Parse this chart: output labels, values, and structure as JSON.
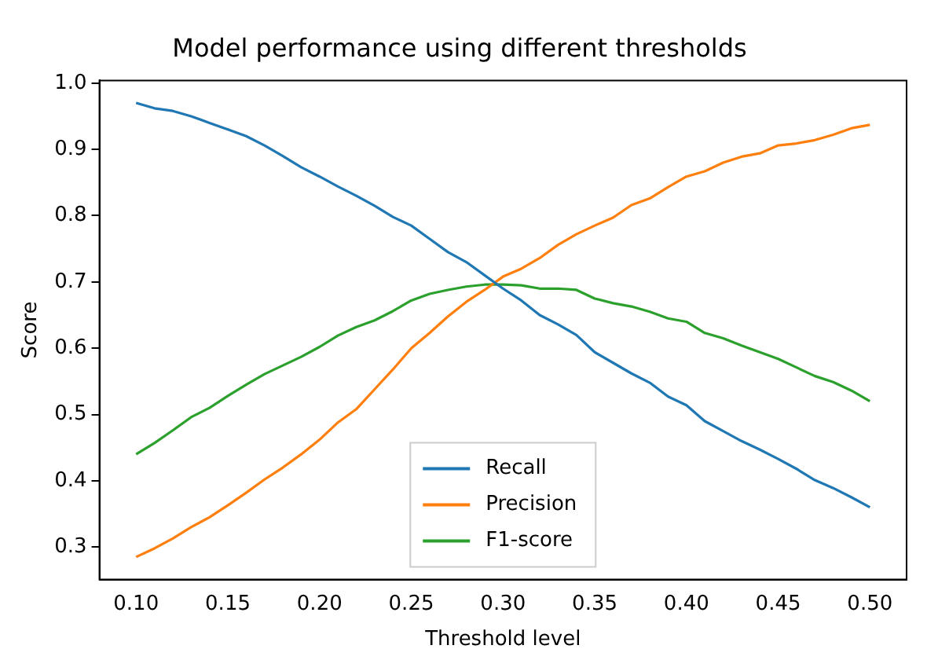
{
  "chart_data": {
    "type": "line",
    "title": "Model performance using different thresholds",
    "xlabel": "Threshold level",
    "ylabel": "Score",
    "x": [
      0.1,
      0.11,
      0.12,
      0.13,
      0.14,
      0.15,
      0.16,
      0.17,
      0.18,
      0.19,
      0.2,
      0.21,
      0.22,
      0.23,
      0.24,
      0.25,
      0.26,
      0.27,
      0.28,
      0.29,
      0.3,
      0.31,
      0.32,
      0.33,
      0.34,
      0.35,
      0.36,
      0.37,
      0.38,
      0.39,
      0.4,
      0.41,
      0.42,
      0.43,
      0.44,
      0.45,
      0.46,
      0.47,
      0.48,
      0.49,
      0.5
    ],
    "series": [
      {
        "name": "Recall",
        "color": "#1f77b4",
        "values": [
          0.97,
          0.962,
          0.958,
          0.95,
          0.94,
          0.93,
          0.92,
          0.906,
          0.89,
          0.873,
          0.859,
          0.844,
          0.83,
          0.815,
          0.798,
          0.785,
          0.765,
          0.745,
          0.73,
          0.71,
          0.69,
          0.672,
          0.65,
          0.636,
          0.62,
          0.594,
          0.578,
          0.562,
          0.548,
          0.527,
          0.514,
          0.49,
          0.475,
          0.46,
          0.447,
          0.433,
          0.418,
          0.401,
          0.389,
          0.375,
          0.36
        ]
      },
      {
        "name": "Precision",
        "color": "#ff7f0e",
        "values": [
          0.285,
          0.298,
          0.313,
          0.33,
          0.345,
          0.363,
          0.382,
          0.402,
          0.42,
          0.44,
          0.462,
          0.488,
          0.508,
          0.538,
          0.568,
          0.6,
          0.623,
          0.648,
          0.67,
          0.688,
          0.708,
          0.72,
          0.736,
          0.756,
          0.772,
          0.785,
          0.797,
          0.816,
          0.826,
          0.843,
          0.859,
          0.867,
          0.88,
          0.889,
          0.894,
          0.906,
          0.909,
          0.914,
          0.922,
          0.932,
          0.937
        ]
      },
      {
        "name": "F1-score",
        "color": "#2ca02c",
        "values": [
          0.44,
          0.457,
          0.476,
          0.496,
          0.51,
          0.528,
          0.545,
          0.561,
          0.574,
          0.587,
          0.602,
          0.619,
          0.632,
          0.642,
          0.656,
          0.672,
          0.682,
          0.688,
          0.693,
          0.696,
          0.696,
          0.695,
          0.69,
          0.69,
          0.688,
          0.675,
          0.668,
          0.663,
          0.655,
          0.645,
          0.64,
          0.623,
          0.615,
          0.604,
          0.594,
          0.584,
          0.571,
          0.558,
          0.549,
          0.536,
          0.52
        ]
      }
    ],
    "xlim": [
      0.08,
      0.52
    ],
    "ylim": [
      0.251,
      1.004
    ],
    "xticks": [
      {
        "value": 0.1,
        "label": "0.10"
      },
      {
        "value": 0.15,
        "label": "0.15"
      },
      {
        "value": 0.2,
        "label": "0.20"
      },
      {
        "value": 0.25,
        "label": "0.25"
      },
      {
        "value": 0.3,
        "label": "0.30"
      },
      {
        "value": 0.35,
        "label": "0.35"
      },
      {
        "value": 0.4,
        "label": "0.40"
      },
      {
        "value": 0.45,
        "label": "0.45"
      },
      {
        "value": 0.5,
        "label": "0.50"
      }
    ],
    "yticks": [
      {
        "value": 0.3,
        "label": "0.3"
      },
      {
        "value": 0.4,
        "label": "0.4"
      },
      {
        "value": 0.5,
        "label": "0.5"
      },
      {
        "value": 0.6,
        "label": "0.6"
      },
      {
        "value": 0.7,
        "label": "0.7"
      },
      {
        "value": 0.8,
        "label": "0.8"
      },
      {
        "value": 0.9,
        "label": "0.9"
      },
      {
        "value": 1.0,
        "label": "1.0"
      }
    ],
    "grid": false,
    "legend": "bottom",
    "marker": "none",
    "line_style": "solid"
  }
}
